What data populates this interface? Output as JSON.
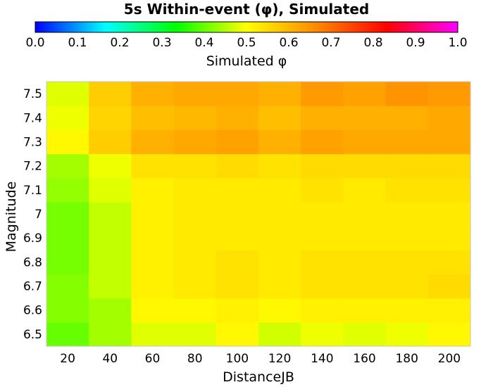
{
  "chart_data": {
    "type": "heatmap",
    "title": "5s Within-event (φ), Simulated",
    "xlabel": "DistanceJB",
    "ylabel": "Magnitude",
    "colorbar": {
      "label": "Simulated φ",
      "range": [
        0.0,
        1.0
      ],
      "ticks": [
        "0.0",
        "0.1",
        "0.2",
        "0.3",
        "0.4",
        "0.5",
        "0.6",
        "0.7",
        "0.8",
        "0.9",
        "1.0"
      ],
      "stops": [
        "#0000ff",
        "#00ffff",
        "#00ff00",
        "#ffff00",
        "#ff8800",
        "#ff0000",
        "#ff00ff"
      ]
    },
    "x": [
      20,
      40,
      60,
      80,
      100,
      120,
      140,
      160,
      180,
      200
    ],
    "x_tick_labels": [
      "20",
      "40",
      "60",
      "80",
      "100",
      "120",
      "140",
      "160",
      "180",
      "200"
    ],
    "y": [
      6.5,
      6.6,
      6.7,
      6.8,
      6.9,
      7.0,
      7.1,
      7.2,
      7.3,
      7.4,
      7.5
    ],
    "y_tick_labels": [
      "6.5",
      "6.6",
      "6.7",
      "6.8",
      "6.9",
      "7",
      "7.1",
      "7.2",
      "7.3",
      "7.4",
      "7.5"
    ],
    "z": [
      [
        0.4,
        0.44,
        0.48,
        0.48,
        0.51,
        0.47,
        0.49,
        0.48,
        0.49,
        0.51
      ],
      [
        0.42,
        0.44,
        0.51,
        0.51,
        0.52,
        0.51,
        0.52,
        0.52,
        0.52,
        0.52
      ],
      [
        0.42,
        0.46,
        0.52,
        0.53,
        0.54,
        0.53,
        0.54,
        0.54,
        0.54,
        0.55
      ],
      [
        0.41,
        0.46,
        0.52,
        0.53,
        0.54,
        0.53,
        0.54,
        0.54,
        0.54,
        0.54
      ],
      [
        0.41,
        0.46,
        0.52,
        0.53,
        0.53,
        0.53,
        0.53,
        0.53,
        0.53,
        0.53
      ],
      [
        0.41,
        0.46,
        0.52,
        0.53,
        0.53,
        0.53,
        0.53,
        0.53,
        0.53,
        0.53
      ],
      [
        0.43,
        0.48,
        0.52,
        0.53,
        0.53,
        0.53,
        0.54,
        0.53,
        0.54,
        0.54
      ],
      [
        0.44,
        0.49,
        0.54,
        0.54,
        0.55,
        0.54,
        0.55,
        0.55,
        0.55,
        0.55
      ],
      [
        0.51,
        0.57,
        0.61,
        0.62,
        0.63,
        0.61,
        0.63,
        0.62,
        0.62,
        0.62
      ],
      [
        0.49,
        0.56,
        0.59,
        0.6,
        0.61,
        0.59,
        0.61,
        0.61,
        0.61,
        0.62
      ],
      [
        0.48,
        0.57,
        0.61,
        0.62,
        0.62,
        0.61,
        0.64,
        0.63,
        0.65,
        0.64
      ]
    ]
  }
}
